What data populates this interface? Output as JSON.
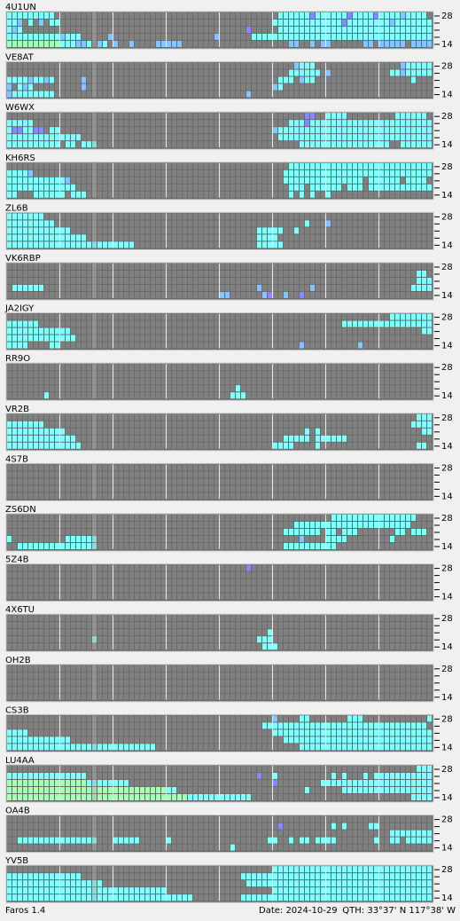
{
  "band_labels": [
    "28",
    "14"
  ],
  "level_colors": [
    "#808080",
    "#88c4ff",
    "#88ffff",
    "#a8ffb8",
    "#8888ff"
  ],
  "cursor_column": 16,
  "stations": [
    {
      "name": "4U1UN",
      "rows": [
        "22222222200000000000000000000000000000000000000000022222242222224222242222122220",
        "22102010220000000000000000000000000000000000000000222222222222242222222212222222",
        "21200000000000000000000000000000000000000000040000022222222222222222222222222222",
        "22222222221222000001000000000000000000010000002222222222222222222222222222222222",
        "33333333332221120120100100001111100000000000000000000110010110000001101111101111"
      ]
    },
    {
      "name": "VE8AT",
      "rows": [
        "00000000000000000000000000000000000000000000000000000012220000000000000000122222222",
        "00000000000000000000000000000000000000000000000000000222222010000000000022122222",
        "22221221200000100000000000000000000000000000000000022201220000000000000000002000",
        "10212000000000100000000000000000000000000000000000120000000000000000000000000000",
        "12222222200000000000000000000000000000000000010000000000000000000000000000000000"
      ]
    },
    {
      "name": "W6WX",
      "rows": [
        "00000000000000000000000000000000000000000000000000000000440022220000000002222220",
        "22222000000000000000000000000000000000000000000000000222422222222222222222222222",
        "24422440220000000000000000000000000000000000000000122222222222222222222222222222",
        "22222222222222000000000000000000000000000000000000022222222222222222222222222222",
        "22222222220220222000000000000000000000000000000000000002222222222222222200222222222"
      ]
    },
    {
      "name": "KH6RS",
      "rows": [
        "00000000000000000000000000000000000000000000000000000222222222222222222222222222",
        "22221000000000000000000000000000000000000000000000002222222222222222222222222222",
        "22222222222100000000000000000000000000000000000000002222222222222220222222022220",
        "22222222222220000000000000000000000000000000000000000222022222202220222222222222",
        "22000222222022200000000000000000000000000000000000000202020020000000000000000000"
      ]
    },
    {
      "name": "ZL6B",
      "rows": [
        "22222220000000000000000000000000000000000000000000000000000000000000000000000000",
        "22222222200000000000000000000000000000000000000000000000200010000000000000000000",
        "22222222222200000000000000000000000000000000000222220020000000000000000000000000",
        "22222222222222200000000000000000000000000000000222200000000000000000000000000000",
        "22222222222222222222222200000000000000000000000222220000000000000000000000000000"
      ]
    },
    {
      "name": "VK6RBP",
      "rows": [
        "00000000000000000000000000000000000000000000000000000000000000000000000000000000",
        "00000000000000000000000000000000000000000000000000000000000000000000000000000220",
        "00000000000000000000000000000000000000000000000000000000000000000000000000000222",
        "02222220000000000000000000000000000000000000000100000000010000000000000000002222",
        "00000000000000000000000000000000000000001100000014001004000000000000000000000000"
      ]
    },
    {
      "name": "JA2IGY",
      "rows": [
        "00000000000000000000000000000000000000000000000000000000000000000000000022222222",
        "22222200000000000000000000000000000000000000000000000000000000022222222222222222",
        "22222222222200000000000000000000000000000000000000000000000000000000000000000022",
        "22222222222220000000000000000000000000000000000000000000000000000000000000000000",
        "22220000220000000000000000000000000000000000000000000001000000000010000000000000000000"
      ]
    },
    {
      "name": "RR9O",
      "rows": [
        "00000000000000000000000000000000000000000000000000000000000000000000000000000000",
        "00000000000000000000000000000000000000000000000000000000000000000000000000000000",
        "00000000000000000000000000000000000000000000000000000000000000000000000000000000",
        "00000000000000000000000000000000000000000002000000000000000000000000000000000000",
        "00000002000000000000000000000000000000000022200000000000000000000000000000000000"
      ]
    },
    {
      "name": "VR2B",
      "rows": [
        "00000000000000000000000000000000000000000000000000000000000000000000000000000222",
        "22222220000000000000000000000000000000000000000000000000000000000000000000002222",
        "22222222222000000000000000000000000000000000000000000000202000000000000000000022",
        "22222222222220000000000000000000000000000000000000002222202222220000000000000000",
        "22222222222222000000000000000000000000000000000000222200002000000000000000000220"
      ]
    },
    {
      "name": "4S7B",
      "rows": [
        "00000000000000000000000000000000000000000000000000000000000000000000000000000000",
        "00000000000000000000000000000000000000000000000000000000000000000000000000000000",
        "00000000000000000000000000000000000000000000000000000000000000000000000000000000",
        "00000000000000000000000000000000000000000000000000000000000000000000000000000000",
        "00000000000000000000000000000000000000000000000000000000000000000000000000000000"
      ]
    },
    {
      "name": "ZS6DN",
      "rows": [
        "00000000000000000000000000000000000000000000000000000000000002222222222222222000",
        "00000000000000000000000000000000000000000000000000000022222222222222222222220000",
        "00000000000000000000000000000000000000000000000000002222222022022200000002202220",
        "20000000000222222000000000000000000000000000000000000001000022220000000020000000",
        "00222222222222222000000000000000000000000000000000002222222222000000000000000000"
      ]
    },
    {
      "name": "5Z4B",
      "rows": [
        "00000000000000000000000000000000000000000000040000000000000000000000000000000000",
        "00000000000000000000000000000000000000000000000000000000000000000000000000000000",
        "00000000000000000000000000000000000000000000000000000000000000000000000000000000",
        "00000000000000000000000000000000000000000000000000000000000000000000000000000000",
        "00000000000000000000000000000000000000000000000000000000000000000000000000000000"
      ]
    },
    {
      "name": "4X6TU",
      "rows": [
        "00000000000000000000000000000000000000000000000000000000000000000000000000000000",
        "00000000000000000000000000000000000000000000000000000000000000000000000000000000",
        "00000000000000000000000000000000000000000000000002000000000000000000000000000000",
        "00000000000000002000000000000000000000000000000222000000000000000000000000000000",
        "00000000000000000000000000000000000000000000000022200000000000000000000000000000"
      ]
    },
    {
      "name": "OH2B",
      "rows": [
        "00000000000000000000000000000000000000000000000000000000000000000000000000000000",
        "00000000000000000000000000000000000000000000000000000000000000000000000000000000",
        "00000000000000000000000000000000000000000000000000000000000000000000000000000000",
        "00000000000000000000000000000000000000000000000000000000000000000000000000000000",
        "00000000000000000000000000000000000000000000000000000000000000000000000000000000"
      ]
    },
    {
      "name": "CS3B",
      "rows": [
        "00000000000000000000000000000000000000000000000000100002200000002220000000000002220",
        "00000000000000000000000000000000000000000000000022222222222222222222222222222220",
        "22220000000000000000000000000000000000000000000000222222222222222222222222222222",
        "22222222222200000000000000000000000000000000000000002222222222222222222222222222",
        "22222222222222222222222222220000000000000000000000000002222222222222222222222222"
      ]
    },
    {
      "name": "LU4AA",
      "rows": [
        "00000000000000000000000000000000000000000000000000000000000000000000000000000222",
        "22222222222222200000000000000000000000000000000400200000000002020002022222222222",
        "33333333333333322222222000000000000000000000000000400000000222222222222222222222",
        "33333333333333333333333333333322000000000000000000000000200000022222222222222222",
        "33333333333333333333333333333333332222222222220000000000000000000000000000002222"
      ]
    },
    {
      "name": "OA4B",
      "rows": [
        "00000000000000000000000000000000000000000000000000000000000000000000000000000000",
        "00000000000000000000000000000000000000000000000000040000000002020000220000000000",
        "00000000000000000000000000000000000000000000000000000000000000000000000022222222",
        "00222222222222222000222220000020000000000000000002200202202222000000020022022222222",
        "00000000000000000000000000000000000000000020000000000000000000000000000000000000"
      ]
    },
    {
      "name": "YV5B",
      "rows": [
        "00000000000000000000000000000000000000000000000000222222222222222222222222222222",
        "22222222222222000000000000000000000000000000222222222222222222222222222222222222",
        "22222222222222222200000000000000000000000000022222222222222222222222222222222222",
        "22222222222222222222222222222200000000000000000000222222222222222222222222222222",
        "22222222222222222222222222222222222000000000222222222222222222222222222222222222"
      ]
    }
  ],
  "footer": {
    "app": "Faros 1.4",
    "date": "Date: 2024-10-29",
    "qth": "QTH: 33°37' N  117°38' W"
  }
}
